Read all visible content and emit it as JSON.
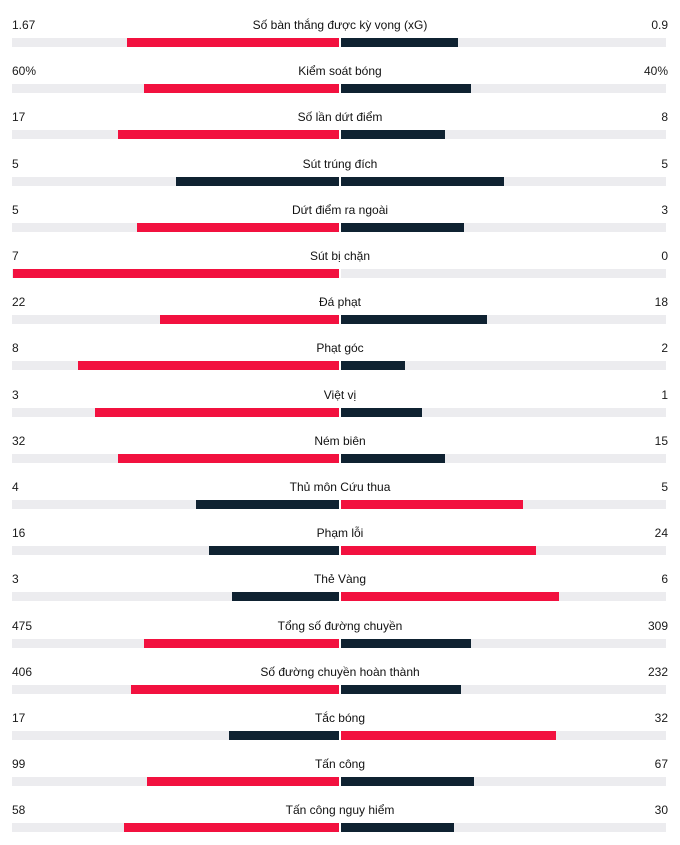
{
  "colors": {
    "highlight": "#f2113f",
    "dark": "#0f2231",
    "track": "#ececef"
  },
  "stats": [
    {
      "label": "Số bàn thắng được kỳ vọng (xG)",
      "left": "1.67",
      "right": "0.9",
      "left_share": 0.65,
      "right_share": 0.36,
      "left_color": "highlight",
      "right_color": "dark"
    },
    {
      "label": "Kiểm soát bóng",
      "left": "60%",
      "right": "40%",
      "left_share": 0.6,
      "right_share": 0.4,
      "left_color": "highlight",
      "right_color": "dark"
    },
    {
      "label": "Số lần dứt điểm",
      "left": "17",
      "right": "8",
      "left_share": 0.68,
      "right_share": 0.32,
      "left_color": "highlight",
      "right_color": "dark"
    },
    {
      "label": "Sút trúng đích",
      "left": "5",
      "right": "5",
      "left_share": 0.5,
      "right_share": 0.5,
      "left_color": "dark",
      "right_color": "dark"
    },
    {
      "label": "Dứt điểm ra ngoài",
      "left": "5",
      "right": "3",
      "left_share": 0.62,
      "right_share": 0.38,
      "left_color": "highlight",
      "right_color": "dark"
    },
    {
      "label": "Sút bị chặn",
      "left": "7",
      "right": "0",
      "left_share": 1.0,
      "right_share": 0.0,
      "left_color": "highlight",
      "right_color": "dark"
    },
    {
      "label": "Đá phạt",
      "left": "22",
      "right": "18",
      "left_share": 0.55,
      "right_share": 0.45,
      "left_color": "highlight",
      "right_color": "dark"
    },
    {
      "label": "Phạt góc",
      "left": "8",
      "right": "2",
      "left_share": 0.8,
      "right_share": 0.2,
      "left_color": "highlight",
      "right_color": "dark"
    },
    {
      "label": "Việt vị",
      "left": "3",
      "right": "1",
      "left_share": 0.75,
      "right_share": 0.25,
      "left_color": "highlight",
      "right_color": "dark"
    },
    {
      "label": "Ném biên",
      "left": "32",
      "right": "15",
      "left_share": 0.68,
      "right_share": 0.32,
      "left_color": "highlight",
      "right_color": "dark"
    },
    {
      "label": "Thủ môn Cứu thua",
      "left": "4",
      "right": "5",
      "left_share": 0.44,
      "right_share": 0.56,
      "left_color": "dark",
      "right_color": "highlight"
    },
    {
      "label": "Phạm lỗi",
      "left": "16",
      "right": "24",
      "left_share": 0.4,
      "right_share": 0.6,
      "left_color": "dark",
      "right_color": "highlight"
    },
    {
      "label": "Thẻ Vàng",
      "left": "3",
      "right": "6",
      "left_share": 0.33,
      "right_share": 0.67,
      "left_color": "dark",
      "right_color": "highlight"
    },
    {
      "label": "Tổng số đường chuyền",
      "left": "475",
      "right": "309",
      "left_share": 0.6,
      "right_share": 0.4,
      "left_color": "highlight",
      "right_color": "dark"
    },
    {
      "label": "Số đường chuyền hoàn thành",
      "left": "406",
      "right": "232",
      "left_share": 0.64,
      "right_share": 0.37,
      "left_color": "highlight",
      "right_color": "dark"
    },
    {
      "label": "Tắc bóng",
      "left": "17",
      "right": "32",
      "left_share": 0.34,
      "right_share": 0.66,
      "left_color": "dark",
      "right_color": "highlight"
    },
    {
      "label": "Tấn công",
      "left": "99",
      "right": "67",
      "left_share": 0.59,
      "right_share": 0.41,
      "left_color": "highlight",
      "right_color": "dark"
    },
    {
      "label": "Tấn công nguy hiểm",
      "left": "58",
      "right": "30",
      "left_share": 0.66,
      "right_share": 0.35,
      "left_color": "highlight",
      "right_color": "dark"
    }
  ]
}
